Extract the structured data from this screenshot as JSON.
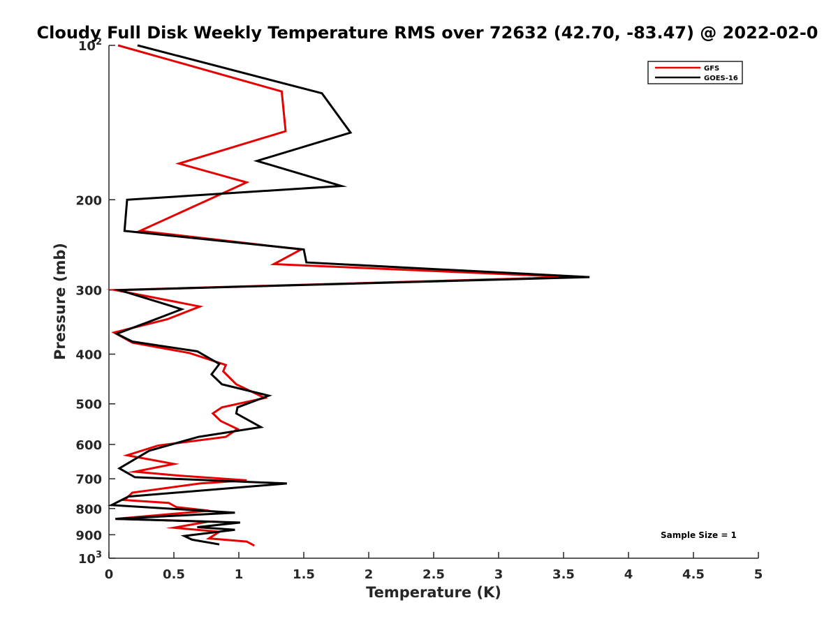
{
  "chart_data": {
    "type": "line",
    "title": "Cloudy Full Disk Weekly Temperature RMS over 72632 (42.70, -83.47) @ 2022-02-0",
    "xlabel": "Temperature (K)",
    "ylabel": "Pressure (mb)",
    "xlim": [
      0,
      5
    ],
    "ylim": [
      100,
      1000
    ],
    "y_scale": "log",
    "y_reversed": true,
    "grid": false,
    "legend_position": "top-right",
    "annotation": "Sample Size = 1",
    "x_ticks": [
      {
        "value": 0,
        "label": "0"
      },
      {
        "value": 0.5,
        "label": "0.5"
      },
      {
        "value": 1,
        "label": "1"
      },
      {
        "value": 1.5,
        "label": "1.5"
      },
      {
        "value": 2,
        "label": "2"
      },
      {
        "value": 2.5,
        "label": "2.5"
      },
      {
        "value": 3,
        "label": "3"
      },
      {
        "value": 3.5,
        "label": "3.5"
      },
      {
        "value": 4,
        "label": "4"
      },
      {
        "value": 4.5,
        "label": "4.5"
      },
      {
        "value": 5,
        "label": "5"
      }
    ],
    "y_ticks": [
      {
        "value": 100,
        "label": "10",
        "sup": "2"
      },
      {
        "value": 200,
        "label": "200"
      },
      {
        "value": 300,
        "label": "300"
      },
      {
        "value": 400,
        "label": "400"
      },
      {
        "value": 500,
        "label": "500"
      },
      {
        "value": 600,
        "label": "600"
      },
      {
        "value": 700,
        "label": "700"
      },
      {
        "value": 800,
        "label": "800"
      },
      {
        "value": 900,
        "label": "900"
      },
      {
        "value": 1000,
        "label": "10",
        "sup": "3"
      }
    ],
    "series": [
      {
        "name": "GFS",
        "color": "#e60000",
        "points": [
          [
            0.07,
            100
          ],
          [
            1.33,
            123
          ],
          [
            1.36,
            147
          ],
          [
            0.54,
            170
          ],
          [
            1.06,
            185
          ],
          [
            0.24,
            230
          ],
          [
            1.48,
            250
          ],
          [
            1.27,
            267
          ],
          [
            3.58,
            283
          ],
          [
            0.05,
            300
          ],
          [
            0.7,
            323
          ],
          [
            0.45,
            342
          ],
          [
            0.04,
            363
          ],
          [
            0.18,
            380
          ],
          [
            0.62,
            398
          ],
          [
            0.9,
            420
          ],
          [
            0.88,
            432
          ],
          [
            0.98,
            458
          ],
          [
            1.2,
            487
          ],
          [
            0.87,
            508
          ],
          [
            0.8,
            522
          ],
          [
            0.86,
            540
          ],
          [
            0.99,
            560
          ],
          [
            0.9,
            580
          ],
          [
            0.38,
            603
          ],
          [
            0.14,
            630
          ],
          [
            0.5,
            655
          ],
          [
            0.2,
            678
          ],
          [
            0.54,
            690
          ],
          [
            1.06,
            705
          ],
          [
            0.7,
            715
          ],
          [
            0.18,
            745
          ],
          [
            0.12,
            770
          ],
          [
            0.46,
            780
          ],
          [
            0.52,
            795
          ],
          [
            0.77,
            808
          ],
          [
            0.05,
            838
          ],
          [
            0.77,
            848
          ],
          [
            0.5,
            872
          ],
          [
            0.85,
            888
          ],
          [
            0.77,
            915
          ],
          [
            1.06,
            928
          ],
          [
            1.12,
            945
          ]
        ]
      },
      {
        "name": "GOES-16",
        "color": "#000000",
        "points": [
          [
            0.22,
            100
          ],
          [
            1.64,
            124
          ],
          [
            1.86,
            148
          ],
          [
            1.14,
            168
          ],
          [
            1.79,
            188
          ],
          [
            0.14,
            200
          ],
          [
            0.12,
            230
          ],
          [
            1.5,
            250
          ],
          [
            1.52,
            265
          ],
          [
            3.7,
            283
          ],
          [
            0.08,
            300
          ],
          [
            0.56,
            327
          ],
          [
            0.32,
            345
          ],
          [
            0.06,
            365
          ],
          [
            0.18,
            378
          ],
          [
            0.68,
            395
          ],
          [
            0.85,
            418
          ],
          [
            0.79,
            438
          ],
          [
            0.87,
            458
          ],
          [
            1.23,
            482
          ],
          [
            0.99,
            508
          ],
          [
            0.98,
            522
          ],
          [
            1.17,
            555
          ],
          [
            0.69,
            580
          ],
          [
            0.31,
            617
          ],
          [
            0.08,
            668
          ],
          [
            0.2,
            695
          ],
          [
            1.37,
            715
          ],
          [
            0.15,
            758
          ],
          [
            0.02,
            788
          ],
          [
            0.97,
            815
          ],
          [
            0.05,
            838
          ],
          [
            1.01,
            852
          ],
          [
            0.68,
            870
          ],
          [
            0.97,
            880
          ],
          [
            0.58,
            905
          ],
          [
            0.64,
            920
          ],
          [
            0.85,
            940
          ]
        ]
      }
    ]
  }
}
